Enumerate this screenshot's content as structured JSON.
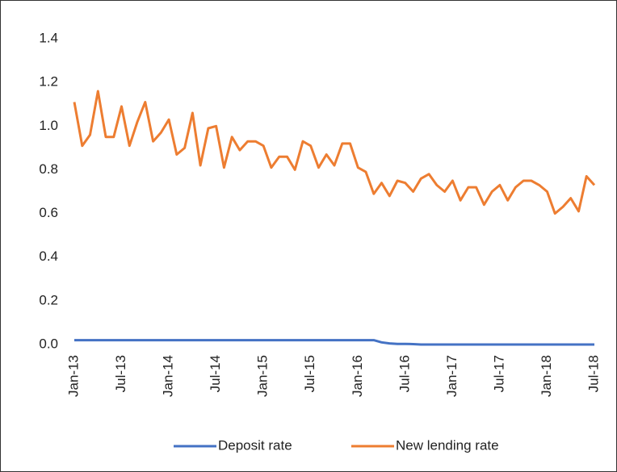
{
  "chart_data": {
    "type": "line",
    "categories": [
      "Jan-13",
      null,
      null,
      null,
      null,
      null,
      "Jul-13",
      null,
      null,
      null,
      null,
      null,
      "Jan-14",
      null,
      null,
      null,
      null,
      null,
      "Jul-14",
      null,
      null,
      null,
      null,
      null,
      "Jan-15",
      null,
      null,
      null,
      null,
      null,
      "Jul-15",
      null,
      null,
      null,
      null,
      null,
      "Jan-16",
      null,
      null,
      null,
      null,
      null,
      "Jul-16",
      null,
      null,
      null,
      null,
      null,
      "Jan-17",
      null,
      null,
      null,
      null,
      null,
      "Jul-17",
      null,
      null,
      null,
      null,
      null,
      "Jan-18",
      null,
      null,
      null,
      null,
      null,
      "Jul-18"
    ],
    "series": [
      {
        "name": "Deposit rate",
        "color": "#4472c4",
        "values": [
          0.02,
          0.02,
          0.02,
          0.02,
          0.02,
          0.02,
          0.02,
          0.02,
          0.02,
          0.02,
          0.02,
          0.02,
          0.02,
          0.02,
          0.02,
          0.02,
          0.02,
          0.02,
          0.02,
          0.02,
          0.02,
          0.02,
          0.02,
          0.02,
          0.02,
          0.02,
          0.02,
          0.02,
          0.02,
          0.02,
          0.02,
          0.02,
          0.02,
          0.02,
          0.02,
          0.02,
          0.02,
          0.02,
          0.02,
          0.01,
          0.005,
          0.003,
          0.003,
          0.002,
          0,
          0,
          0,
          0,
          0,
          0,
          0,
          0,
          0,
          0,
          0,
          0,
          0,
          0,
          0,
          0,
          0,
          0,
          0,
          0,
          0,
          0,
          0
        ]
      },
      {
        "name": "New lending rate",
        "color": "#ed7d31",
        "values": [
          1.11,
          0.91,
          0.96,
          1.16,
          0.95,
          0.95,
          1.09,
          0.91,
          1.02,
          1.11,
          0.93,
          0.97,
          1.03,
          0.87,
          0.9,
          1.06,
          0.82,
          0.99,
          1.0,
          0.81,
          0.95,
          0.89,
          0.93,
          0.93,
          0.91,
          0.81,
          0.86,
          0.86,
          0.8,
          0.93,
          0.91,
          0.81,
          0.87,
          0.82,
          0.92,
          0.92,
          0.81,
          0.79,
          0.69,
          0.74,
          0.68,
          0.75,
          0.74,
          0.7,
          0.76,
          0.78,
          0.73,
          0.7,
          0.75,
          0.66,
          0.72,
          0.72,
          0.64,
          0.7,
          0.73,
          0.66,
          0.72,
          0.75,
          0.75,
          0.73,
          0.7,
          0.6,
          0.63,
          0.67,
          0.61,
          0.77,
          0.73
        ]
      }
    ],
    "ylim": [
      0,
      1.4
    ],
    "yticks": [
      {
        "value": 0,
        "label": "0.0"
      },
      0.2,
      0.4,
      0.6,
      0.8,
      {
        "value": 1,
        "label": "1.0"
      },
      1.2,
      1.4
    ],
    "grid": false,
    "legend": "bottom"
  }
}
